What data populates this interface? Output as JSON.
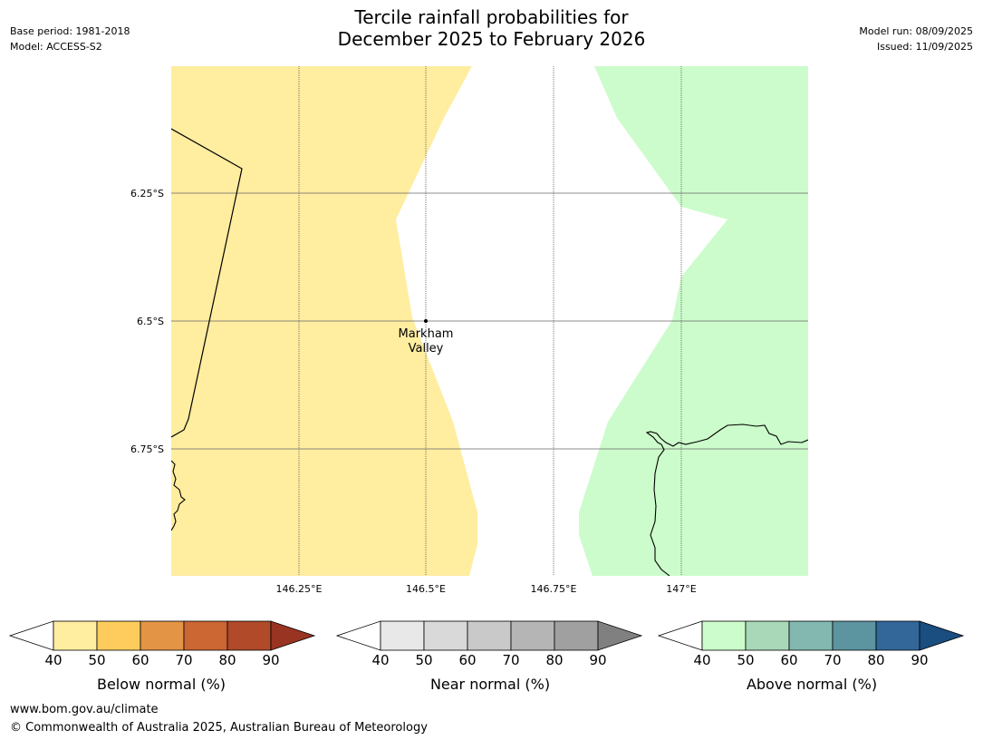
{
  "title": {
    "line1": "Tercile rainfall probabilities for",
    "line2": "December 2025 to February 2026"
  },
  "meta_left": {
    "base_period": "Base period: 1981-2018",
    "model": "Model: ACCESS-S2"
  },
  "meta_right": {
    "model_run": "Model run: 08/09/2025",
    "issued": "Issued: 11/09/2025"
  },
  "map": {
    "lon_ticks": [
      "146.25°E",
      "146.5°E",
      "146.75°E",
      "147°E"
    ],
    "lat_ticks": [
      "6.25°S",
      "6.5°S",
      "6.75°S"
    ],
    "place_label_line1": "Markham",
    "place_label_line2": "Valley",
    "colors": {
      "below_normal_40_50": "#ffeda0",
      "above_normal_40_50": "#ccfccb",
      "coastline": "#000000",
      "gridline": "#808080"
    }
  },
  "colorbars": [
    {
      "name": "below-normal",
      "title": "Below normal (%)",
      "ticks": [
        "40",
        "50",
        "60",
        "70",
        "80",
        "90"
      ],
      "colors": [
        "#ffeda0",
        "#fecc5c",
        "#e39445",
        "#cc6633",
        "#b04a28",
        "#993322"
      ]
    },
    {
      "name": "near-normal",
      "title": "Near normal (%)",
      "ticks": [
        "40",
        "50",
        "60",
        "70",
        "80",
        "90"
      ],
      "colors": [
        "#e8e8e8",
        "#d9d9d9",
        "#c9c9c9",
        "#b5b5b5",
        "#a0a0a0",
        "#808080"
      ]
    },
    {
      "name": "above-normal",
      "title": "Above normal (%)",
      "ticks": [
        "40",
        "50",
        "60",
        "70",
        "80",
        "90"
      ],
      "colors": [
        "#ccfccb",
        "#a8d8b8",
        "#82b8b0",
        "#5c94a0",
        "#336699",
        "#1a4d80"
      ]
    }
  ],
  "footer": {
    "url": "www.bom.gov.au/climate",
    "copyright": "© Commonwealth of Australia 2025, Australian Bureau of Meteorology"
  }
}
